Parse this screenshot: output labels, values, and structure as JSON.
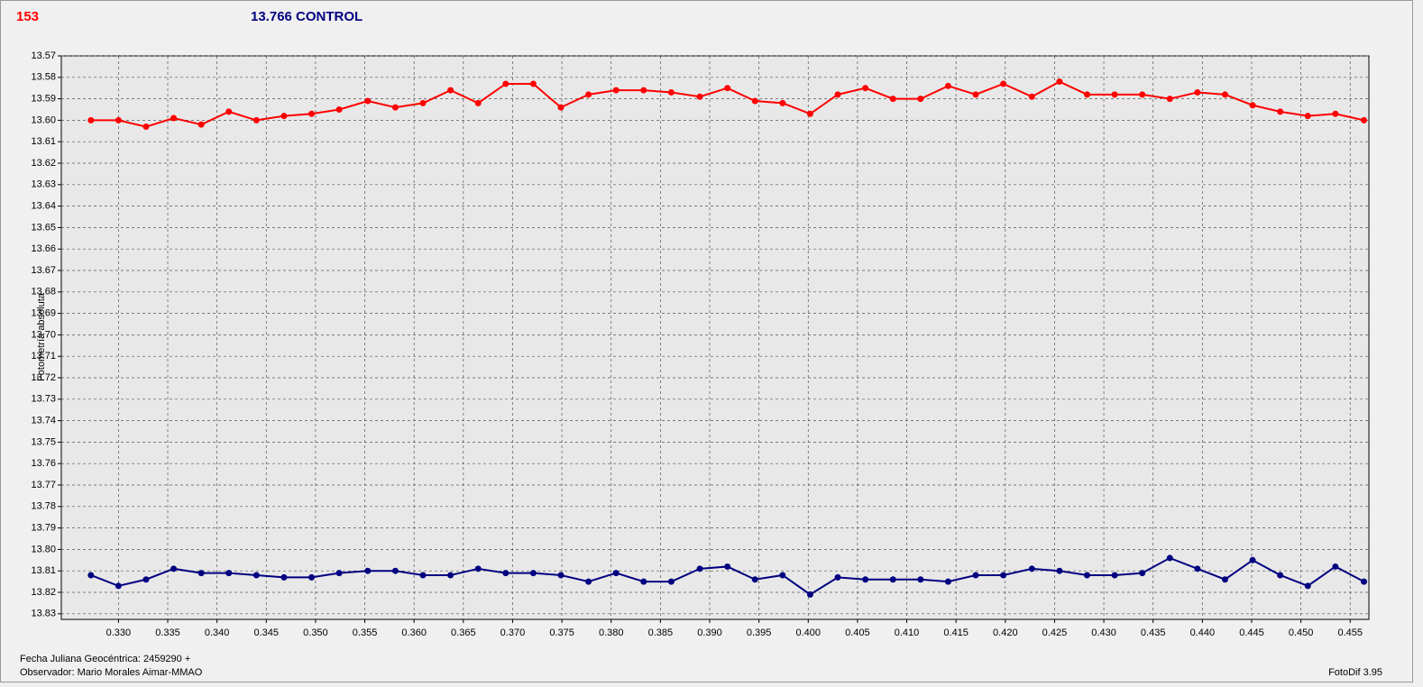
{
  "chart_data": {
    "type": "line",
    "y_label": "Fotometría absoluta",
    "footer": [
      "Fecha Juliana Geocéntrica: 2459290 +",
      "Observador: Mario Morales Aimar-MMAO"
    ],
    "software": "FotoDif 3.95",
    "invert_y": true,
    "grid": true,
    "xlim": [
      0.3242,
      0.4569
    ],
    "ylim": [
      13.57,
      13.8326
    ],
    "xticks": [
      {
        "value": 0.33,
        "label": "0.330"
      },
      0.335,
      {
        "value": 0.34,
        "label": "0.340"
      },
      0.345,
      {
        "value": 0.35,
        "label": "0.350"
      },
      0.355,
      {
        "value": 0.36,
        "label": "0.360"
      },
      0.365,
      {
        "value": 0.37,
        "label": "0.370"
      },
      0.375,
      {
        "value": 0.38,
        "label": "0.380"
      },
      0.385,
      {
        "value": 0.39,
        "label": "0.390"
      },
      0.395,
      {
        "value": 0.4,
        "label": "0.400"
      },
      0.405,
      {
        "value": 0.41,
        "label": "0.410"
      },
      0.415,
      {
        "value": 0.42,
        "label": "0.420"
      },
      0.425,
      {
        "value": 0.43,
        "label": "0.430"
      },
      0.435,
      {
        "value": 0.44,
        "label": "0.440"
      },
      0.445,
      {
        "value": 0.45,
        "label": "0.450"
      },
      0.455
    ],
    "yticks": [
      13.57,
      13.58,
      13.59,
      {
        "value": 13.6,
        "label": "13.60"
      },
      13.61,
      13.62,
      13.63,
      13.64,
      13.65,
      13.66,
      13.67,
      13.68,
      13.69,
      {
        "value": 13.7,
        "label": "13.70"
      },
      13.71,
      13.72,
      13.73,
      13.74,
      13.75,
      13.76,
      13.77,
      13.78,
      13.79,
      {
        "value": 13.8,
        "label": "13.80"
      },
      13.81,
      13.82,
      13.83
    ],
    "x": [
      0.3272,
      0.33,
      0.3328,
      0.3356,
      0.3384,
      0.3412,
      0.344,
      0.3468,
      0.3496,
      0.3524,
      0.3553,
      0.3581,
      0.3609,
      0.3637,
      0.3665,
      0.3693,
      0.3721,
      0.3749,
      0.3777,
      0.3805,
      0.3833,
      0.3861,
      0.389,
      0.3918,
      0.3946,
      0.3974,
      0.4002,
      0.403,
      0.4058,
      0.4086,
      0.4114,
      0.4142,
      0.417,
      0.4198,
      0.4227,
      0.4255,
      0.4283,
      0.4311,
      0.4339,
      0.4367,
      0.4395,
      0.4423,
      0.4451,
      0.4479,
      0.4507,
      0.4535,
      0.4564
    ],
    "series": [
      {
        "name": "153",
        "color": "#ff0000",
        "values": [
          13.6,
          13.6,
          13.603,
          13.599,
          13.602,
          13.596,
          13.6,
          13.598,
          13.597,
          13.595,
          13.591,
          13.594,
          13.592,
          13.586,
          13.592,
          13.583,
          13.583,
          13.594,
          13.588,
          13.586,
          13.586,
          13.587,
          13.589,
          13.585,
          13.591,
          13.592,
          13.597,
          13.588,
          13.585,
          13.59,
          13.59,
          13.584,
          13.588,
          13.583,
          13.589,
          13.582,
          13.588,
          13.588,
          13.588,
          13.59,
          13.587,
          13.588,
          13.593,
          13.596,
          13.598,
          13.597,
          13.6
        ]
      },
      {
        "name": "13.766 CONTROL",
        "color": "#000080",
        "values": [
          13.812,
          13.817,
          13.814,
          13.809,
          13.811,
          13.811,
          13.812,
          13.813,
          13.813,
          13.811,
          13.81,
          13.81,
          13.812,
          13.812,
          13.809,
          13.811,
          13.811,
          13.812,
          13.815,
          13.811,
          13.815,
          13.815,
          13.809,
          13.808,
          13.814,
          13.812,
          13.821,
          13.813,
          13.814,
          13.814,
          13.814,
          13.815,
          13.812,
          13.812,
          13.809,
          13.81,
          13.812,
          13.812,
          13.811,
          13.804,
          13.809,
          13.814,
          13.805,
          13.812,
          13.817,
          13.808,
          13.815
        ]
      }
    ]
  }
}
